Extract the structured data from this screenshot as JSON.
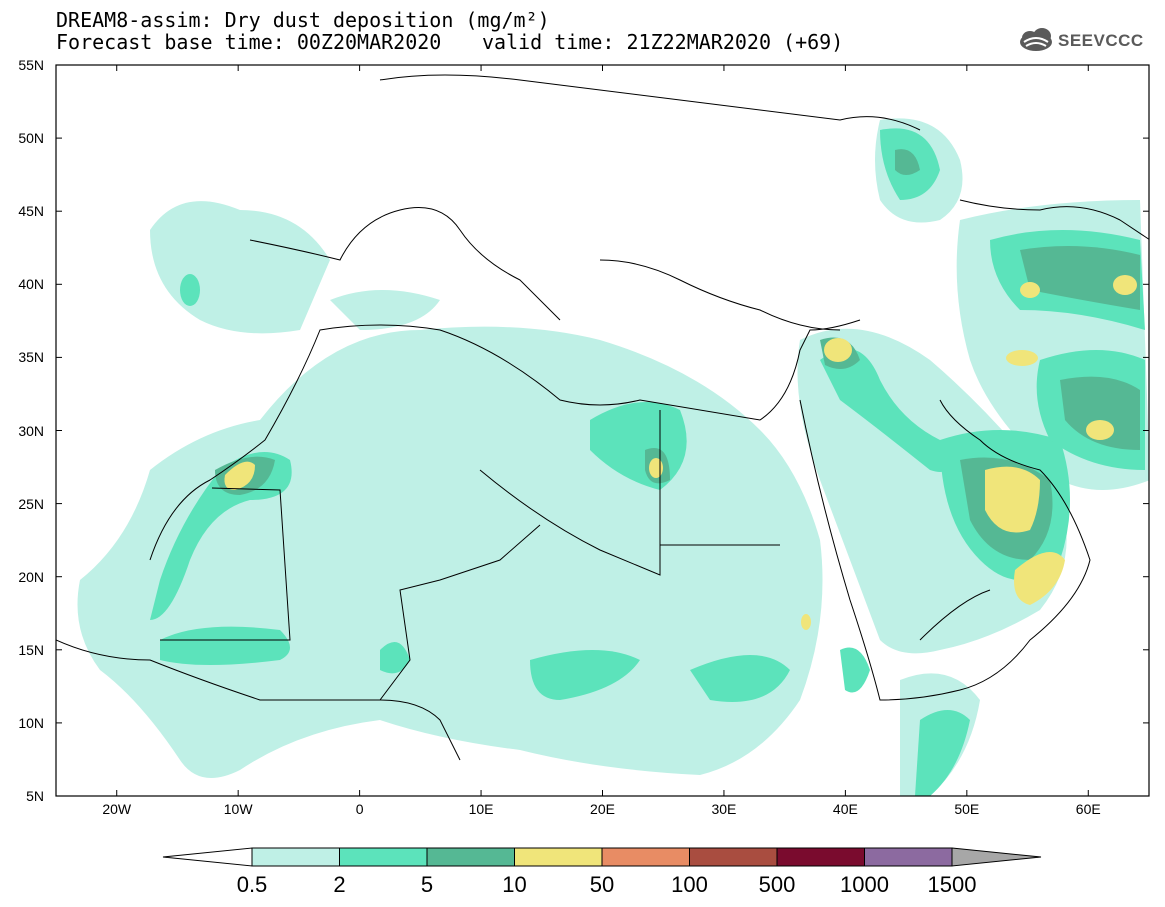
{
  "header": {
    "title_line1": "DREAM8-assim: Dry dust deposition (mg/m²)",
    "title_line2": "Forecast base time: 00Z20MAR2020",
    "valid_time": "valid time: 21Z22MAR2020 (+69)",
    "logo_text": "SEEVCCC"
  },
  "map": {
    "lat_labels": [
      "55N",
      "50N",
      "45N",
      "40N",
      "35N",
      "30N",
      "25N",
      "20N",
      "15N",
      "10N",
      "5N"
    ],
    "lon_labels": [
      "20W",
      "10W",
      "0",
      "10E",
      "20E",
      "30E",
      "40E",
      "50E",
      "60E"
    ],
    "lat_range": [
      5,
      55
    ],
    "lon_range": [
      -25,
      65
    ]
  },
  "colorbar": {
    "labels": [
      "0.5",
      "2",
      "5",
      "10",
      "50",
      "100",
      "500",
      "1000",
      "1500"
    ],
    "colors": [
      "#bff0e6",
      "#5ce3bb",
      "#55b894",
      "#f0e57a",
      "#e88c64",
      "#a94d40",
      "#7a0b2e",
      "#8c6aa0"
    ],
    "under_color": "#ffffff",
    "over_color": "#a7a7a7"
  },
  "fill_colors": {
    "c1": "#bff0e6",
    "c2": "#5ce3bb",
    "c3": "#55b894",
    "c4": "#f0e57a"
  }
}
